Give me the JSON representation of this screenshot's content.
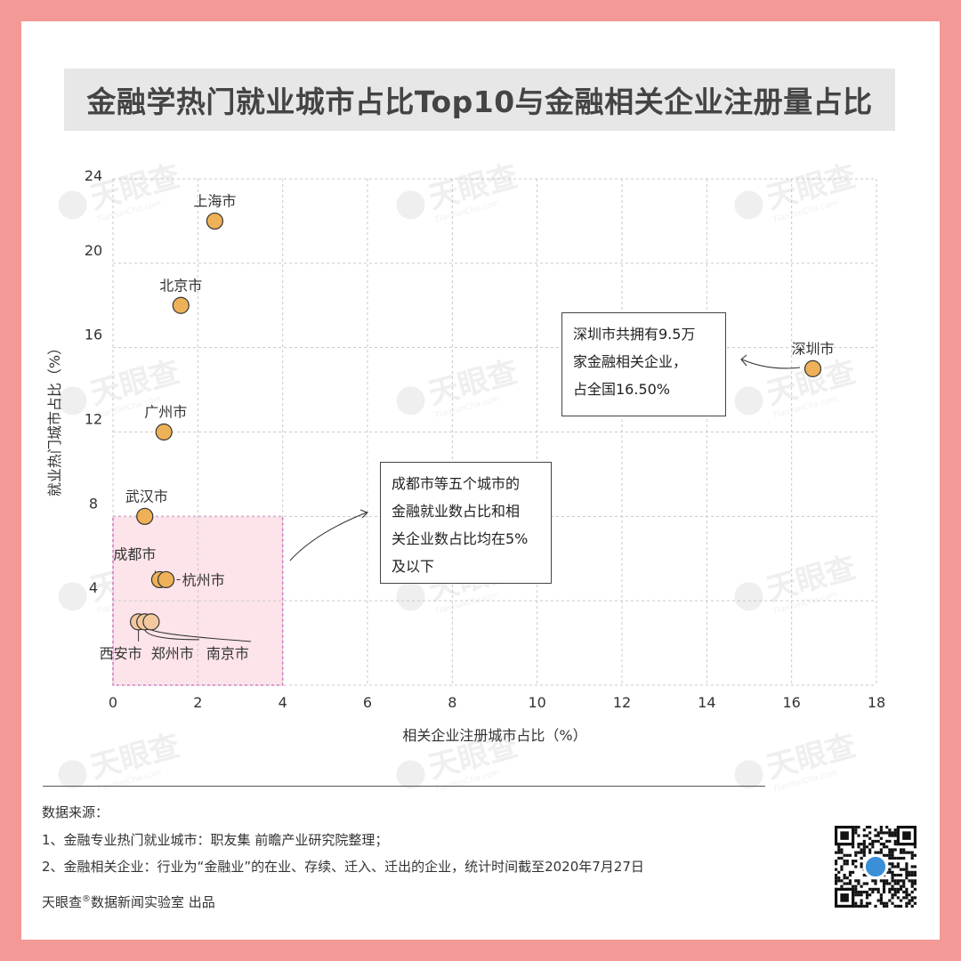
{
  "title": "金融学热门就业城市占比Top10与金融相关企业注册量占比",
  "chart_data": {
    "type": "scatter",
    "xlabel": "相关企业注册城市占比（%）",
    "ylabel": "就业热门城市占比（%）",
    "xlim": [
      0,
      18
    ],
    "ylim": [
      0,
      24
    ],
    "xticks": [
      0,
      2,
      4,
      6,
      8,
      10,
      12,
      14,
      16,
      18
    ],
    "yticks": [
      4,
      8,
      12,
      16,
      20,
      24
    ],
    "grid": true,
    "points": [
      {
        "label": "上海市",
        "x": 2.4,
        "y": 22
      },
      {
        "label": "北京市",
        "x": 1.6,
        "y": 18
      },
      {
        "label": "深圳市",
        "x": 16.5,
        "y": 15
      },
      {
        "label": "广州市",
        "x": 1.2,
        "y": 12
      },
      {
        "label": "武汉市",
        "x": 0.75,
        "y": 8
      },
      {
        "label": "成都市",
        "x": 1.1,
        "y": 5
      },
      {
        "label": "杭州市",
        "x": 1.25,
        "y": 5
      },
      {
        "label": "西安市",
        "x": 0.6,
        "y": 3
      },
      {
        "label": "郑州市",
        "x": 0.75,
        "y": 3
      },
      {
        "label": "南京市",
        "x": 0.9,
        "y": 3
      }
    ],
    "highlight_region": {
      "x": [
        0,
        4
      ],
      "y": [
        0,
        8
      ]
    },
    "annotations": [
      "深圳市共拥有9.5万\n家金融相关企业，\n占全国16.50%",
      "成都市等五个城市的\n金融就业数占比和相\n关企业数占比均在5%\n及以下"
    ],
    "colors": {
      "point": "#eeb158",
      "point_light": "#f3c89f",
      "region": "#fde4ea",
      "region_border": "#d86fc0"
    }
  },
  "watermark": {
    "text": "天眼查",
    "sub": "TianYanCha.com"
  },
  "footer": {
    "source_title": "数据来源：",
    "line1": "1、金融专业热门就业城市：职友集 前瞻产业研究院整理；",
    "line2": "2、金融相关企业：行业为“金融业”的在业、存续、迁入、迁出的企业，统计时间截至2020年7月27日",
    "credit_prefix": "天眼查",
    "credit_mark": "®",
    "credit_suffix": "数据新闻实验室 出品"
  }
}
